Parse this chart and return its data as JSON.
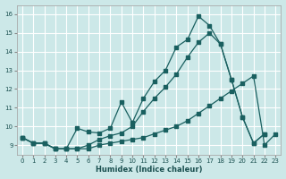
{
  "xlabel": "Humidex (Indice chaleur)",
  "bg_color": "#cce8e8",
  "grid_color": "#ffffff",
  "line_color": "#1a6060",
  "xlim": [
    -0.5,
    23.5
  ],
  "ylim": [
    8.5,
    16.5
  ],
  "xticks": [
    0,
    1,
    2,
    3,
    4,
    5,
    6,
    7,
    8,
    9,
    10,
    11,
    12,
    13,
    14,
    15,
    16,
    17,
    18,
    19,
    20,
    21,
    22,
    23
  ],
  "yticks": [
    9,
    10,
    11,
    12,
    13,
    14,
    15,
    16
  ],
  "line1_x": [
    0,
    1,
    2,
    3,
    4,
    5,
    6,
    7,
    8,
    9,
    10,
    11,
    12,
    13,
    14,
    15,
    16,
    17,
    18,
    19,
    20,
    21,
    22
  ],
  "line1_y": [
    9.4,
    9.1,
    9.1,
    8.8,
    8.8,
    9.9,
    9.7,
    9.65,
    9.9,
    11.3,
    10.2,
    11.5,
    12.4,
    13.0,
    14.25,
    14.65,
    15.9,
    15.4,
    14.4,
    12.5,
    10.5,
    9.1,
    9.6
  ],
  "line2_x": [
    0,
    1,
    2,
    3,
    4,
    5,
    6,
    7,
    8,
    9,
    10,
    11,
    12,
    13,
    14,
    15,
    16,
    17,
    18,
    19,
    20,
    21,
    22
  ],
  "line2_y": [
    9.4,
    9.1,
    9.1,
    8.8,
    8.8,
    8.8,
    9.0,
    9.3,
    9.5,
    9.65,
    10.0,
    10.8,
    11.5,
    12.1,
    12.8,
    13.7,
    14.5,
    15.0,
    14.4,
    12.5,
    10.5,
    9.1,
    9.6
  ],
  "line3_x": [
    0,
    1,
    2,
    3,
    4,
    5,
    6,
    7,
    8,
    9,
    10,
    11,
    12,
    13,
    14,
    15,
    16,
    17,
    18,
    19,
    20,
    21,
    22,
    23
  ],
  "line3_y": [
    9.4,
    9.1,
    9.1,
    8.8,
    8.8,
    8.8,
    8.8,
    9.0,
    9.1,
    9.2,
    9.3,
    9.4,
    9.6,
    9.8,
    10.0,
    10.3,
    10.7,
    11.1,
    11.5,
    11.9,
    12.3,
    12.7,
    9.0,
    9.6
  ]
}
